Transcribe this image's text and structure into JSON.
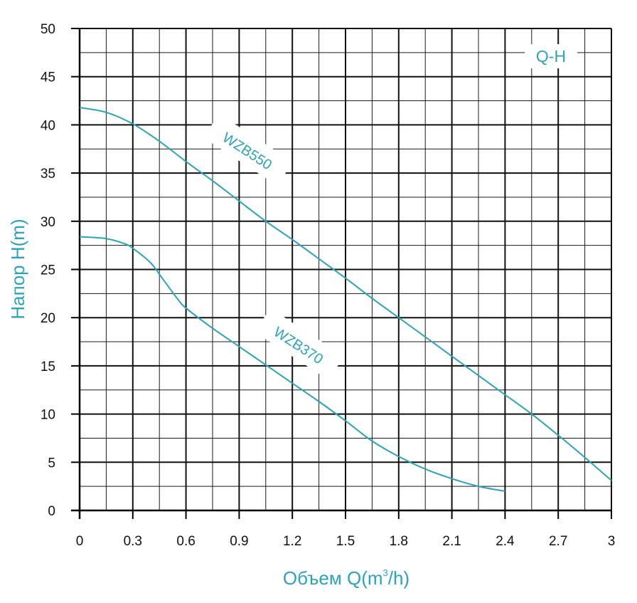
{
  "chart_data": {
    "type": "line",
    "title": "",
    "legend_label": "Q-H",
    "xlabel_main": "Объем Q(m",
    "xlabel_sup": "3",
    "xlabel_tail": "/h)",
    "ylabel": "Напор H(m)",
    "xlim": [
      0,
      3
    ],
    "ylim": [
      0,
      50
    ],
    "x_ticks": [
      0,
      0.3,
      0.6,
      0.9,
      1.2,
      1.5,
      1.8,
      2.1,
      2.4,
      2.7,
      3
    ],
    "x_tick_labels": [
      "0",
      "0.3",
      "0.6",
      "0.9",
      "1.2",
      "1.5",
      "1.8",
      "2.1",
      "2.4",
      "2.7",
      "3"
    ],
    "y_ticks": [
      0,
      5,
      10,
      15,
      20,
      25,
      30,
      35,
      40,
      45,
      50
    ],
    "y_tick_labels": [
      "0",
      "5",
      "10",
      "15",
      "20",
      "25",
      "30",
      "35",
      "40",
      "45",
      "50"
    ],
    "grid": true,
    "line_color": "#2aa3bd",
    "label_color": "#2aa3bd",
    "series": [
      {
        "name": "WZB550",
        "x": [
          0,
          0.15,
          0.3,
          0.45,
          0.6,
          0.75,
          0.9,
          1.05,
          1.2,
          1.35,
          1.5,
          1.65,
          1.8,
          1.95,
          2.1,
          2.25,
          2.4,
          2.55,
          2.7,
          2.85,
          3.0
        ],
        "y": [
          41.8,
          41.3,
          40.1,
          38.3,
          36.2,
          34.2,
          32.1,
          30.0,
          28.1,
          26.1,
          24.1,
          22.0,
          20.0,
          18.0,
          16.0,
          14.0,
          12.0,
          10.0,
          7.8,
          5.5,
          3.1
        ]
      },
      {
        "name": "WZB370",
        "x": [
          0,
          0.15,
          0.25,
          0.3,
          0.4,
          0.45,
          0.55,
          0.6,
          0.75,
          0.9,
          1.05,
          1.2,
          1.35,
          1.5,
          1.65,
          1.8,
          1.95,
          2.1,
          2.25,
          2.4
        ],
        "y": [
          28.4,
          28.2,
          27.7,
          27.2,
          25.7,
          24.5,
          22.0,
          21.0,
          18.9,
          17.0,
          15.1,
          13.2,
          11.3,
          9.3,
          7.2,
          5.6,
          4.3,
          3.3,
          2.5,
          2.0
        ]
      }
    ]
  }
}
